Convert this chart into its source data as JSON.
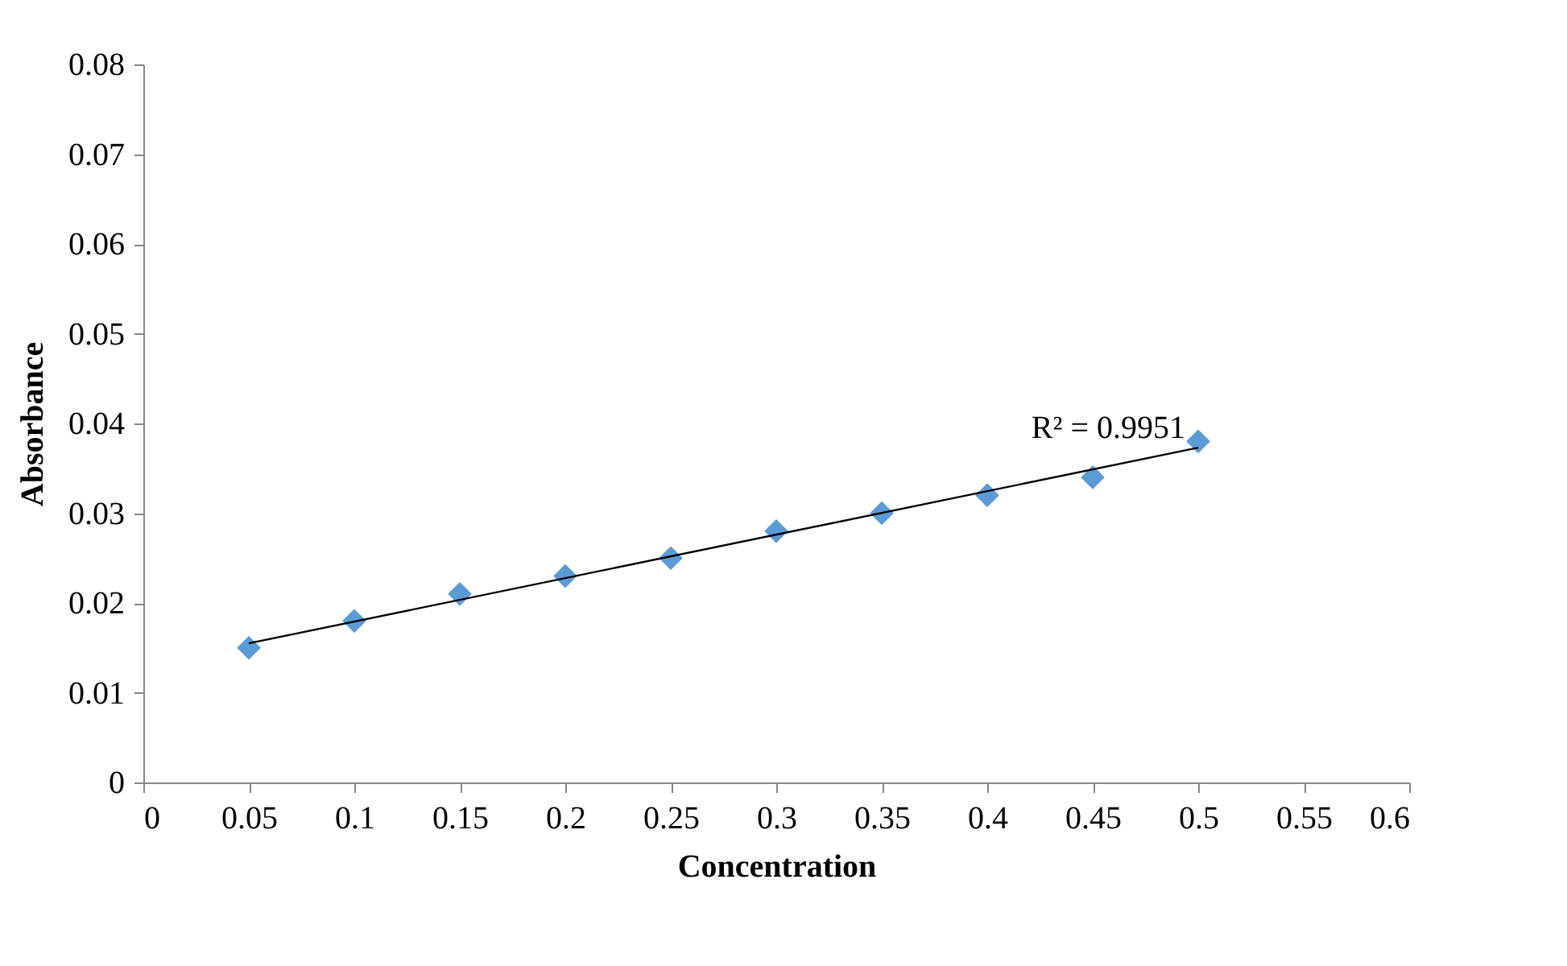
{
  "chart_data": {
    "type": "scatter",
    "xlabel": "Concentration",
    "ylabel": "Absorbance",
    "xlim": [
      0,
      0.6
    ],
    "xticks": [
      0,
      0.05,
      0.1,
      0.15,
      0.2,
      0.25,
      0.3,
      0.35,
      0.4,
      0.45,
      0.5,
      0.55,
      0.6
    ],
    "ylim": [
      0,
      0.08
    ],
    "yticks": [
      0,
      0.01,
      0.02,
      0.03,
      0.04,
      0.05,
      0.06,
      0.07,
      0.08
    ],
    "grid": false,
    "legend": false,
    "marker": "diamond",
    "series": [
      {
        "color": "#5b9bd5",
        "x": [
          0.05,
          0.1,
          0.15,
          0.2,
          0.25,
          0.3,
          0.35,
          0.4,
          0.45,
          0.5
        ],
        "values": [
          0.015,
          0.018,
          0.021,
          0.023,
          0.025,
          0.028,
          0.03,
          0.032,
          0.034,
          0.038
        ]
      },
      {
        "type": "line",
        "color": "#000000",
        "marker": "none",
        "line_style": "solid",
        "x": [
          0.05,
          0.5
        ],
        "values": [
          0.0155,
          0.0373
        ]
      }
    ],
    "annotations": [
      "R² = 0.9951"
    ]
  }
}
